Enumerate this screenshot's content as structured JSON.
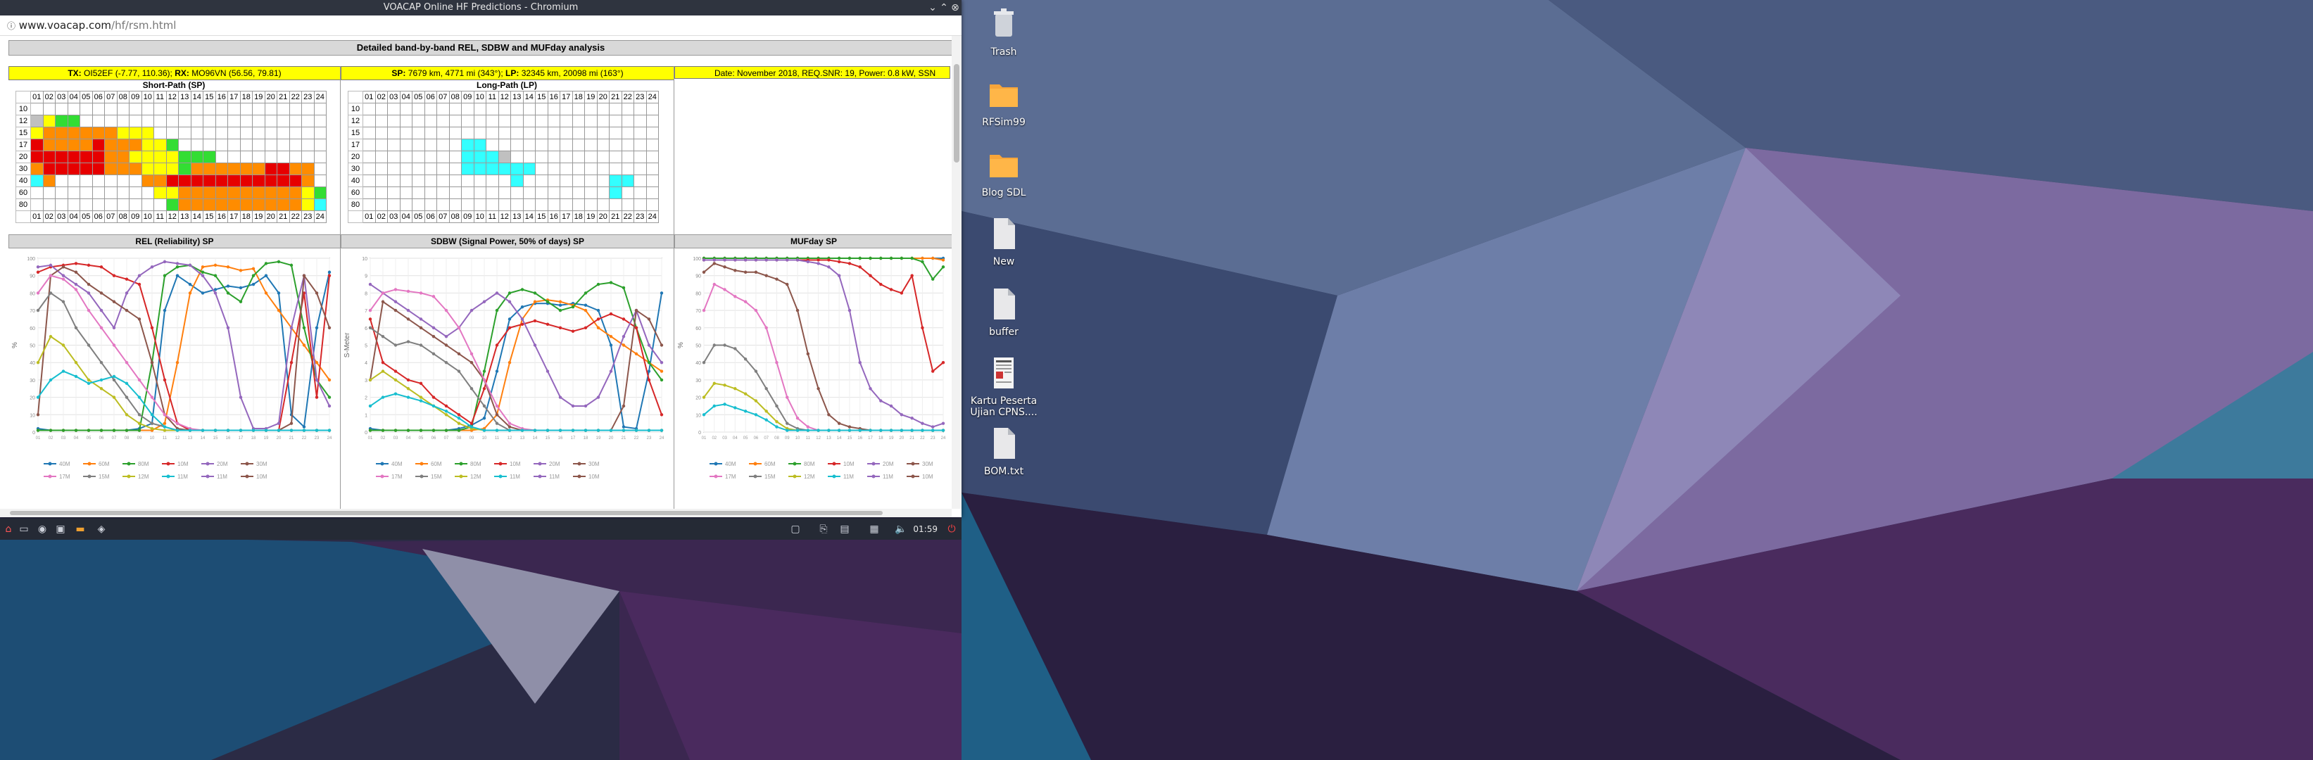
{
  "window": {
    "title": "VOACAP Online HF Predictions - Chromium",
    "url_host": "www.voacap.com",
    "url_path": "/hf/rsm.html"
  },
  "page": {
    "main_title": "Detailed band-by-band REL, SDBW and MUFday analysis",
    "tx_label": "TX:",
    "tx_value": "OI52EF (-7.77, 110.36);",
    "rx_label": "RX:",
    "rx_value": "MO96VN (56.56, 79.81)",
    "sp_label": "SP:",
    "sp_value": "7679 km, 4771 mi (343°);",
    "lp_label": "LP:",
    "lp_value": "32345 km, 20098 mi (163°)",
    "date_info": "Date: November 2018, REQ.SNR: 19, Power: 0.8 kW, SSN",
    "short_path_title": "Short-Path (SP)",
    "long_path_title": "Long-Path (LP)",
    "hours": [
      "01",
      "02",
      "03",
      "04",
      "05",
      "06",
      "07",
      "08",
      "09",
      "10",
      "11",
      "12",
      "13",
      "14",
      "15",
      "16",
      "17",
      "18",
      "19",
      "20",
      "21",
      "22",
      "23",
      "24"
    ],
    "bands": [
      "10",
      "12",
      "15",
      "17",
      "20",
      "30",
      "40",
      "60",
      "80"
    ],
    "sp_grid": [
      "..................................................",
      "XYGG..........",
      "YOOOOOOYYY.",
      "ROOOOROOOYYG....",
      "RRRRRROOYYYYGGG..",
      "ORRRRROOOYYYGOOOOOORROO",
      "CO.......OORRRRRRRRRRRO",
      "..........YYOOOOOOOOOOYGC",
      "...........GOOOOOOOOOOYC"
    ],
    "lp_grid_note": "",
    "rel_title": "REL (Reliability) SP",
    "sdbw_title": "SDBW (Signal Power, 50% of days) SP",
    "muf_title": "MUFday SP",
    "rel_ylabel": "%",
    "sdbw_ylabel": "S-Meter",
    "muf_ylabel": "%",
    "legend_row1": [
      "40M",
      "60M",
      "80M",
      "10M",
      "20M",
      "30M"
    ],
    "legend_row2": [
      "17M",
      "15M",
      "12M",
      "11M",
      "11M",
      "10M"
    ]
  },
  "colors": {
    "red": "#e60000",
    "orange": "#ff8c00",
    "yellow": "#ffff00",
    "green": "#33dd33",
    "cyan": "#33ffff",
    "gray": "#c0c0c0",
    "white": "#ffffff",
    "lightcyan": "#b0ffff"
  },
  "chart_data": [
    {
      "type": "line",
      "title": "REL (Reliability) SP",
      "ylabel": "%",
      "ylim": [
        0,
        100
      ],
      "x": [
        1,
        2,
        3,
        4,
        5,
        6,
        7,
        8,
        9,
        10,
        11,
        12,
        13,
        14,
        15,
        16,
        17,
        18,
        19,
        20,
        21,
        22,
        23,
        24
      ],
      "series": [
        {
          "name": "40M",
          "color": "#1f77b4",
          "values": [
            2,
            1,
            1,
            1,
            1,
            1,
            1,
            1,
            2,
            5,
            70,
            90,
            85,
            80,
            82,
            84,
            83,
            85,
            90,
            80,
            10,
            3,
            60,
            92
          ]
        },
        {
          "name": "60M",
          "color": "#ff7f0e",
          "values": [
            1,
            1,
            1,
            1,
            1,
            1,
            1,
            1,
            1,
            1,
            5,
            40,
            80,
            95,
            96,
            95,
            93,
            94,
            80,
            70,
            60,
            50,
            40,
            30
          ]
        },
        {
          "name": "80M",
          "color": "#2ca02c",
          "values": [
            1,
            1,
            1,
            1,
            1,
            1,
            1,
            1,
            1,
            40,
            90,
            95,
            96,
            92,
            90,
            80,
            75,
            90,
            97,
            98,
            96,
            60,
            30,
            20
          ]
        },
        {
          "name": "30M",
          "color": "#d62728",
          "values": [
            92,
            95,
            96,
            97,
            96,
            95,
            90,
            88,
            85,
            60,
            30,
            5,
            1,
            1,
            1,
            1,
            1,
            1,
            1,
            1,
            40,
            80,
            20,
            90
          ]
        },
        {
          "name": "20M",
          "color": "#9467bd",
          "values": [
            95,
            96,
            90,
            85,
            80,
            70,
            60,
            80,
            90,
            95,
            98,
            97,
            96,
            90,
            80,
            60,
            20,
            2,
            2,
            5,
            60,
            90,
            30,
            15
          ]
        },
        {
          "name": "17M",
          "color": "#8c564b",
          "values": [
            10,
            90,
            95,
            92,
            85,
            80,
            75,
            70,
            65,
            40,
            10,
            2,
            1,
            1,
            1,
            1,
            1,
            1,
            1,
            1,
            5,
            90,
            80,
            60
          ]
        },
        {
          "name": "15M",
          "color": "#e377c2",
          "values": [
            80,
            90,
            88,
            82,
            70,
            60,
            50,
            40,
            30,
            20,
            10,
            5,
            2,
            1,
            1,
            1,
            1,
            1,
            1,
            1,
            1,
            1,
            1,
            1
          ]
        },
        {
          "name": "12M",
          "color": "#7f7f7f",
          "values": [
            70,
            80,
            75,
            60,
            50,
            40,
            30,
            20,
            10,
            5,
            3,
            1,
            1,
            1,
            1,
            1,
            1,
            1,
            1,
            1,
            1,
            1,
            1,
            1
          ]
        },
        {
          "name": "11M",
          "color": "#bcbd22",
          "values": [
            40,
            55,
            50,
            40,
            30,
            25,
            20,
            10,
            5,
            2,
            1,
            1,
            1,
            1,
            1,
            1,
            1,
            1,
            1,
            1,
            1,
            1,
            1,
            1
          ]
        },
        {
          "name": "10M",
          "color": "#17becf",
          "values": [
            20,
            30,
            35,
            32,
            28,
            30,
            32,
            28,
            20,
            10,
            3,
            1,
            1,
            1,
            1,
            1,
            1,
            1,
            1,
            1,
            1,
            1,
            1,
            1
          ]
        }
      ]
    },
    {
      "type": "line",
      "title": "SDBW (Signal Power, 50% of days) SP",
      "ylabel": "S-Meter",
      "ylim": [
        0,
        10
      ],
      "x": [
        1,
        2,
        3,
        4,
        5,
        6,
        7,
        8,
        9,
        10,
        11,
        12,
        13,
        14,
        15,
        16,
        17,
        18,
        19,
        20,
        21,
        22,
        23,
        24
      ],
      "series": [
        {
          "name": "40M",
          "color": "#1f77b4",
          "values": [
            0.2,
            0.1,
            0.1,
            0.1,
            0.1,
            0.1,
            0.1,
            0.2,
            0.4,
            0.8,
            3.5,
            6.5,
            7.2,
            7.4,
            7.4,
            7.3,
            7.4,
            7.3,
            7.0,
            5.0,
            0.3,
            0.2,
            3.5,
            8.0
          ]
        },
        {
          "name": "60M",
          "color": "#ff7f0e",
          "values": [
            0.1,
            0.1,
            0.1,
            0.1,
            0.1,
            0.1,
            0.1,
            0.1,
            0.1,
            0.2,
            1.0,
            4.0,
            6.5,
            7.5,
            7.6,
            7.5,
            7.3,
            7.0,
            6.0,
            5.5,
            5.0,
            4.5,
            4.0,
            3.5
          ]
        },
        {
          "name": "80M",
          "color": "#2ca02c",
          "values": [
            0.1,
            0.1,
            0.1,
            0.1,
            0.1,
            0.1,
            0.1,
            0.1,
            0.3,
            3.5,
            7.0,
            8.0,
            8.2,
            8.0,
            7.5,
            7.0,
            7.2,
            8.0,
            8.5,
            8.6,
            8.3,
            6.0,
            4.0,
            3.0
          ]
        },
        {
          "name": "30M",
          "color": "#d62728",
          "values": [
            6.5,
            4.0,
            3.5,
            3.0,
            2.8,
            2.0,
            1.5,
            1.0,
            0.5,
            2.5,
            5.0,
            6.0,
            6.2,
            6.4,
            6.2,
            6.0,
            5.8,
            6.0,
            6.5,
            6.8,
            6.5,
            6.0,
            3.0,
            1.0
          ]
        },
        {
          "name": "20M",
          "color": "#9467bd",
          "values": [
            8.5,
            8.0,
            7.5,
            7.0,
            6.5,
            6.0,
            5.5,
            6.0,
            7.0,
            7.5,
            8.0,
            7.5,
            6.5,
            5.0,
            3.5,
            2.0,
            1.5,
            1.5,
            2.0,
            3.5,
            5.5,
            7.0,
            5.0,
            4.0
          ]
        },
        {
          "name": "17M",
          "color": "#8c564b",
          "values": [
            3.0,
            7.5,
            7.0,
            6.5,
            6.0,
            5.5,
            5.0,
            4.5,
            4.0,
            3.0,
            1.0,
            0.3,
            0.1,
            0.1,
            0.1,
            0.1,
            0.1,
            0.1,
            0.1,
            0.1,
            1.5,
            7.0,
            6.5,
            5.0
          ]
        },
        {
          "name": "15M",
          "color": "#e377c2",
          "values": [
            7.0,
            8.0,
            8.2,
            8.1,
            8.0,
            7.8,
            7.0,
            6.0,
            4.5,
            3.0,
            1.5,
            0.5,
            0.2,
            0.1,
            0.1,
            0.1,
            0.1,
            0.1,
            0.1,
            0.1,
            0.1,
            0.1,
            0.1,
            0.1
          ]
        },
        {
          "name": "12M",
          "color": "#7f7f7f",
          "values": [
            6.0,
            5.5,
            5.0,
            5.2,
            5.0,
            4.5,
            4.0,
            3.5,
            2.5,
            1.5,
            0.5,
            0.1,
            0.1,
            0.1,
            0.1,
            0.1,
            0.1,
            0.1,
            0.1,
            0.1,
            0.1,
            0.1,
            0.1,
            0.1
          ]
        },
        {
          "name": "11M",
          "color": "#bcbd22",
          "values": [
            3.0,
            3.5,
            3.0,
            2.5,
            2.0,
            1.5,
            1.0,
            0.5,
            0.2,
            0.1,
            0.1,
            0.1,
            0.1,
            0.1,
            0.1,
            0.1,
            0.1,
            0.1,
            0.1,
            0.1,
            0.1,
            0.1,
            0.1,
            0.1
          ]
        },
        {
          "name": "10M",
          "color": "#17becf",
          "values": [
            1.5,
            2.0,
            2.2,
            2.0,
            1.8,
            1.5,
            1.2,
            0.8,
            0.3,
            0.1,
            0.1,
            0.1,
            0.1,
            0.1,
            0.1,
            0.1,
            0.1,
            0.1,
            0.1,
            0.1,
            0.1,
            0.1,
            0.1,
            0.1
          ]
        }
      ]
    },
    {
      "type": "line",
      "title": "MUFday SP",
      "ylabel": "%",
      "ylim": [
        0,
        100
      ],
      "x": [
        1,
        2,
        3,
        4,
        5,
        6,
        7,
        8,
        9,
        10,
        11,
        12,
        13,
        14,
        15,
        16,
        17,
        18,
        19,
        20,
        21,
        22,
        23,
        24
      ],
      "series": [
        {
          "name": "40M",
          "color": "#1f77b4",
          "values": [
            100,
            100,
            100,
            100,
            100,
            100,
            100,
            100,
            100,
            100,
            100,
            100,
            100,
            100,
            100,
            100,
            100,
            100,
            100,
            100,
            100,
            100,
            100,
            100
          ]
        },
        {
          "name": "60M",
          "color": "#ff7f0e",
          "values": [
            100,
            100,
            100,
            100,
            100,
            100,
            100,
            100,
            100,
            100,
            100,
            100,
            100,
            100,
            100,
            100,
            100,
            100,
            100,
            100,
            100,
            100,
            100,
            99
          ]
        },
        {
          "name": "80M",
          "color": "#2ca02c",
          "values": [
            100,
            100,
            100,
            100,
            100,
            100,
            100,
            100,
            100,
            100,
            100,
            100,
            100,
            100,
            100,
            100,
            100,
            100,
            100,
            100,
            100,
            98,
            88,
            95
          ]
        },
        {
          "name": "30M",
          "color": "#d62728",
          "values": [
            99,
            99,
            99,
            99,
            99,
            99,
            99,
            99,
            99,
            99,
            99,
            99,
            99,
            98,
            97,
            95,
            90,
            85,
            82,
            80,
            90,
            60,
            35,
            40
          ]
        },
        {
          "name": "20M",
          "color": "#9467bd",
          "values": [
            99,
            99,
            99,
            99,
            99,
            99,
            99,
            99,
            99,
            99,
            98,
            97,
            95,
            90,
            70,
            40,
            25,
            18,
            15,
            10,
            8,
            5,
            3,
            5
          ]
        },
        {
          "name": "17M",
          "color": "#8c564b",
          "values": [
            92,
            97,
            95,
            93,
            92,
            92,
            90,
            88,
            85,
            70,
            45,
            25,
            10,
            5,
            3,
            2,
            1,
            1,
            1,
            1,
            1,
            1,
            1,
            1
          ]
        },
        {
          "name": "15M",
          "color": "#e377c2",
          "values": [
            70,
            85,
            82,
            78,
            75,
            70,
            60,
            40,
            20,
            8,
            3,
            1,
            1,
            1,
            1,
            1,
            1,
            1,
            1,
            1,
            1,
            1,
            1,
            1
          ]
        },
        {
          "name": "12M",
          "color": "#7f7f7f",
          "values": [
            40,
            50,
            50,
            48,
            42,
            35,
            25,
            15,
            5,
            2,
            1,
            1,
            1,
            1,
            1,
            1,
            1,
            1,
            1,
            1,
            1,
            1,
            1,
            1
          ]
        },
        {
          "name": "11M",
          "color": "#bcbd22",
          "values": [
            20,
            28,
            27,
            25,
            22,
            18,
            12,
            6,
            2,
            1,
            1,
            1,
            1,
            1,
            1,
            1,
            1,
            1,
            1,
            1,
            1,
            1,
            1,
            1
          ]
        },
        {
          "name": "10M",
          "color": "#17becf",
          "values": [
            10,
            15,
            16,
            14,
            12,
            10,
            7,
            3,
            1,
            1,
            1,
            1,
            1,
            1,
            1,
            1,
            1,
            1,
            1,
            1,
            1,
            1,
            1,
            1
          ]
        }
      ]
    }
  ],
  "taskbar": {
    "clock": "01:59"
  },
  "desktop_icons": [
    {
      "label": "Trash"
    },
    {
      "label": "RFSim99"
    },
    {
      "label": "Blog SDL"
    },
    {
      "label": "New"
    },
    {
      "label": "buffer"
    },
    {
      "label": "Kartu Peserta Ujian CPNS...."
    },
    {
      "label": "BOM.txt"
    }
  ]
}
